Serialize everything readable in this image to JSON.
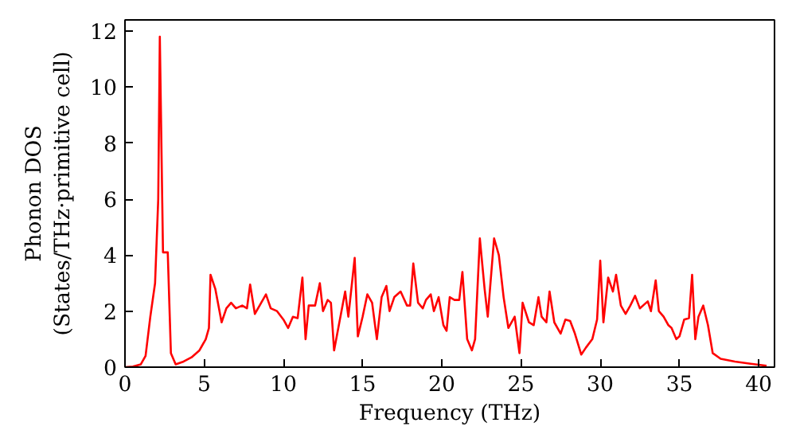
{
  "chart_data": {
    "type": "line",
    "xlabel": "Frequency (THz)",
    "ylabel": "Phonon DOS\n(States/THz·primitive cell)",
    "xlim": [
      0,
      41
    ],
    "ylim": [
      0,
      12.4
    ],
    "xticks": [
      0,
      5,
      10,
      15,
      20,
      25,
      30,
      35,
      40
    ],
    "yticks": [
      0,
      2,
      4,
      6,
      8,
      10,
      12
    ],
    "grid": false,
    "series": [
      {
        "color": "#ff0000",
        "x": [
          0,
          0.5,
          1,
          1.3,
          1.6,
          1.9,
          2.1,
          2.2,
          2.4,
          2.7,
          2.9,
          3.2,
          3.7,
          4.2,
          4.7,
          5.1,
          5.3,
          5.4,
          5.7,
          6.1,
          6.4,
          6.7,
          7.0,
          7.4,
          7.7,
          7.9,
          8.2,
          8.6,
          8.9,
          9.2,
          9.6,
          10.0,
          10.3,
          10.6,
          10.9,
          11.2,
          11.4,
          11.6,
          12.0,
          12.3,
          12.5,
          12.8,
          13.0,
          13.2,
          13.5,
          13.9,
          14.1,
          14.5,
          14.7,
          15.0,
          15.3,
          15.6,
          15.9,
          16.2,
          16.5,
          16.7,
          17.0,
          17.4,
          17.8,
          18.0,
          18.2,
          18.5,
          18.8,
          19.0,
          19.3,
          19.5,
          19.8,
          20.1,
          20.3,
          20.5,
          20.8,
          21.1,
          21.3,
          21.6,
          21.9,
          22.1,
          22.4,
          22.7,
          22.9,
          23.3,
          23.6,
          23.9,
          24.2,
          24.6,
          24.9,
          25.1,
          25.5,
          25.8,
          26.1,
          26.3,
          26.6,
          26.8,
          27.1,
          27.5,
          27.8,
          28.1,
          28.4,
          28.8,
          29.1,
          29.5,
          29.8,
          30.0,
          30.2,
          30.5,
          30.8,
          31.0,
          31.3,
          31.6,
          31.9,
          32.2,
          32.5,
          32.8,
          33.0,
          33.2,
          33.5,
          33.7,
          34.0,
          34.3,
          34.5,
          34.8,
          35.0,
          35.3,
          35.6,
          35.8,
          36.0,
          36.2,
          36.5,
          36.8,
          37.1,
          37.6,
          38.5,
          39.5,
          40.5
        ],
        "values": [
          0,
          0.02,
          0.1,
          0.4,
          1.8,
          3.0,
          6,
          11.8,
          4.1,
          4.1,
          0.5,
          0.1,
          0.2,
          0.35,
          0.6,
          1.0,
          1.4,
          3.3,
          2.8,
          1.6,
          2.1,
          2.3,
          2.1,
          2.2,
          2.1,
          2.95,
          1.9,
          2.3,
          2.6,
          2.1,
          2.0,
          1.7,
          1.4,
          1.8,
          1.75,
          3.2,
          1.0,
          2.2,
          2.2,
          3.0,
          2.0,
          2.4,
          2.3,
          0.6,
          1.5,
          2.7,
          1.8,
          3.9,
          1.1,
          1.8,
          2.6,
          2.3,
          1.0,
          2.5,
          2.9,
          2.0,
          2.5,
          2.7,
          2.2,
          2.2,
          3.7,
          2.3,
          2.1,
          2.4,
          2.6,
          2.0,
          2.5,
          1.5,
          1.3,
          2.5,
          2.4,
          2.4,
          3.4,
          1.0,
          0.6,
          1.0,
          4.6,
          2.8,
          1.8,
          4.6,
          4.0,
          2.5,
          1.4,
          1.8,
          0.5,
          2.3,
          1.6,
          1.5,
          2.5,
          1.8,
          1.6,
          2.7,
          1.6,
          1.2,
          1.7,
          1.65,
          1.2,
          0.45,
          0.7,
          1.0,
          1.7,
          3.8,
          1.6,
          3.2,
          2.7,
          3.3,
          2.2,
          1.9,
          2.2,
          2.55,
          2.1,
          2.25,
          2.35,
          2.0,
          3.1,
          2.0,
          1.8,
          1.5,
          1.4,
          1.0,
          1.1,
          1.7,
          1.75,
          3.3,
          1.0,
          1.8,
          2.2,
          1.5,
          0.5,
          0.3,
          0.2,
          0.12,
          0.05
        ]
      }
    ]
  }
}
